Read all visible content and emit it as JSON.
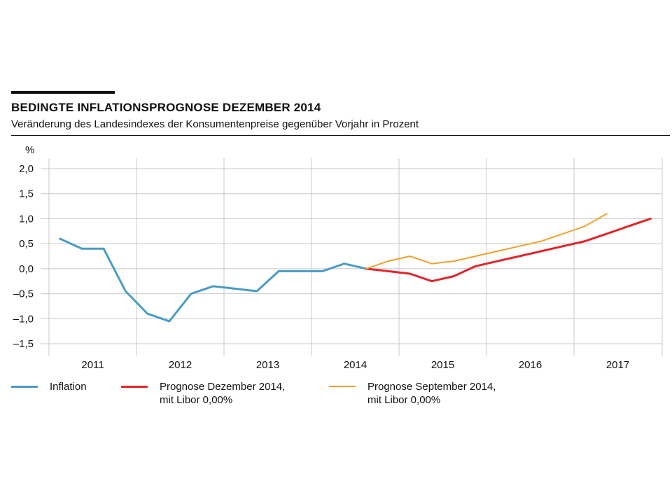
{
  "chart_data": {
    "type": "line",
    "title": "BEDINGTE INFLATIONSPROGNOSE DEZEMBER 2014",
    "subtitle": "Veränderung des Landesindexes der Konsumentenpreise gegenüber Vorjahr in Prozent",
    "ylabel": "%",
    "ylim": [
      -1.5,
      2.0
    ],
    "yticks": [
      2.0,
      1.5,
      1.0,
      0.5,
      0.0,
      -0.5,
      -1.0,
      -1.5
    ],
    "ytick_labels": [
      "2,0",
      "1,5",
      "1,0",
      "0,5",
      "0,0",
      "–0,5",
      "–1,0",
      "–1,5"
    ],
    "x_categories": [
      "2011",
      "2012",
      "2013",
      "2014",
      "2015",
      "2016",
      "2017"
    ],
    "x_unit": "quarters",
    "grid": true,
    "legend_position": "bottom",
    "series": [
      {
        "name": "Inflation",
        "color": "#4a9cc5",
        "points": [
          {
            "x": "2011 Q1",
            "y": 0.6
          },
          {
            "x": "2011 Q2",
            "y": 0.4
          },
          {
            "x": "2011 Q3",
            "y": 0.4
          },
          {
            "x": "2011 Q4",
            "y": -0.45
          },
          {
            "x": "2012 Q1",
            "y": -0.9
          },
          {
            "x": "2012 Q2",
            "y": -1.05
          },
          {
            "x": "2012 Q3",
            "y": -0.5
          },
          {
            "x": "2012 Q4",
            "y": -0.35
          },
          {
            "x": "2013 Q1",
            "y": -0.4
          },
          {
            "x": "2013 Q2",
            "y": -0.45
          },
          {
            "x": "2013 Q3",
            "y": -0.05
          },
          {
            "x": "2013 Q4",
            "y": -0.05
          },
          {
            "x": "2014 Q1",
            "y": -0.05
          },
          {
            "x": "2014 Q2",
            "y": 0.1
          },
          {
            "x": "2014 Q3",
            "y": 0.0
          }
        ]
      },
      {
        "name": "Prognose Dezember 2014,",
        "name_line2": "mit Libor 0,00%",
        "color": "#e3242b",
        "points": [
          {
            "x": "2014 Q3",
            "y": 0.0
          },
          {
            "x": "2014 Q4",
            "y": -0.05
          },
          {
            "x": "2015 Q1",
            "y": -0.1
          },
          {
            "x": "2015 Q2",
            "y": -0.25
          },
          {
            "x": "2015 Q3",
            "y": -0.15
          },
          {
            "x": "2015 Q4",
            "y": 0.05
          },
          {
            "x": "2016 Q1",
            "y": 0.15
          },
          {
            "x": "2016 Q2",
            "y": 0.25
          },
          {
            "x": "2016 Q3",
            "y": 0.35
          },
          {
            "x": "2016 Q4",
            "y": 0.45
          },
          {
            "x": "2017 Q1",
            "y": 0.55
          },
          {
            "x": "2017 Q2",
            "y": 0.7
          },
          {
            "x": "2017 Q3",
            "y": 0.85
          },
          {
            "x": "2017 Q4",
            "y": 1.0
          }
        ]
      },
      {
        "name": "Prognose September 2014,",
        "name_line2": "mit Libor 0,00%",
        "color": "#f0a22e",
        "points": [
          {
            "x": "2014 Q3",
            "y": 0.0
          },
          {
            "x": "2014 Q4",
            "y": 0.15
          },
          {
            "x": "2015 Q1",
            "y": 0.25
          },
          {
            "x": "2015 Q2",
            "y": 0.1
          },
          {
            "x": "2015 Q3",
            "y": 0.15
          },
          {
            "x": "2015 Q4",
            "y": 0.25
          },
          {
            "x": "2016 Q1",
            "y": 0.35
          },
          {
            "x": "2016 Q2",
            "y": 0.45
          },
          {
            "x": "2016 Q3",
            "y": 0.55
          },
          {
            "x": "2016 Q4",
            "y": 0.7
          },
          {
            "x": "2017 Q1",
            "y": 0.85
          },
          {
            "x": "2017 Q2",
            "y": 1.1
          }
        ]
      }
    ]
  }
}
